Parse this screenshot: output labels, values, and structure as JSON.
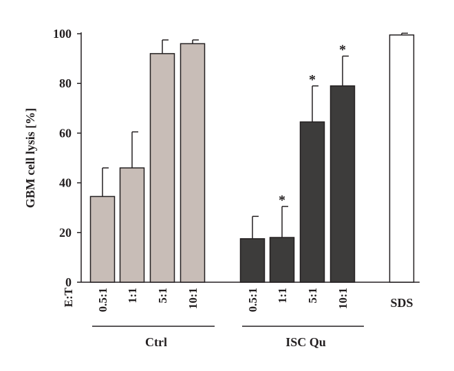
{
  "chart_data": {
    "type": "bar",
    "ylabel": "GBM cell lysis [%]",
    "ylim": [
      0,
      100
    ],
    "yticks": [
      0,
      20,
      40,
      60,
      80,
      100
    ],
    "x_axis_prefix": "E:T",
    "grid": false,
    "colors": {
      "Ctrl": "#c8bdb7",
      "ISC Qu": "#3d3c3b",
      "SDS": "#ffffff",
      "stroke": "#231f20"
    },
    "groups": [
      {
        "name": "Ctrl",
        "categories": [
          "0.5:1",
          "1:1",
          "5:1",
          "10:1"
        ],
        "values": [
          34.5,
          46,
          92,
          96
        ],
        "errors": [
          11.5,
          14.5,
          5.5,
          1.5
        ],
        "significant": [
          false,
          false,
          false,
          false
        ]
      },
      {
        "name": "ISC Qu",
        "categories": [
          "0.5:1",
          "1:1",
          "5:1",
          "10:1"
        ],
        "values": [
          17.5,
          18,
          64.5,
          79
        ],
        "errors": [
          9,
          12.5,
          14.5,
          12
        ],
        "significant": [
          false,
          true,
          true,
          true
        ]
      },
      {
        "name": "",
        "categories": [
          "SDS"
        ],
        "values": [
          99.5
        ],
        "errors": [
          0.7
        ],
        "significant": [
          false
        ]
      }
    ],
    "significance_marker": "*"
  }
}
